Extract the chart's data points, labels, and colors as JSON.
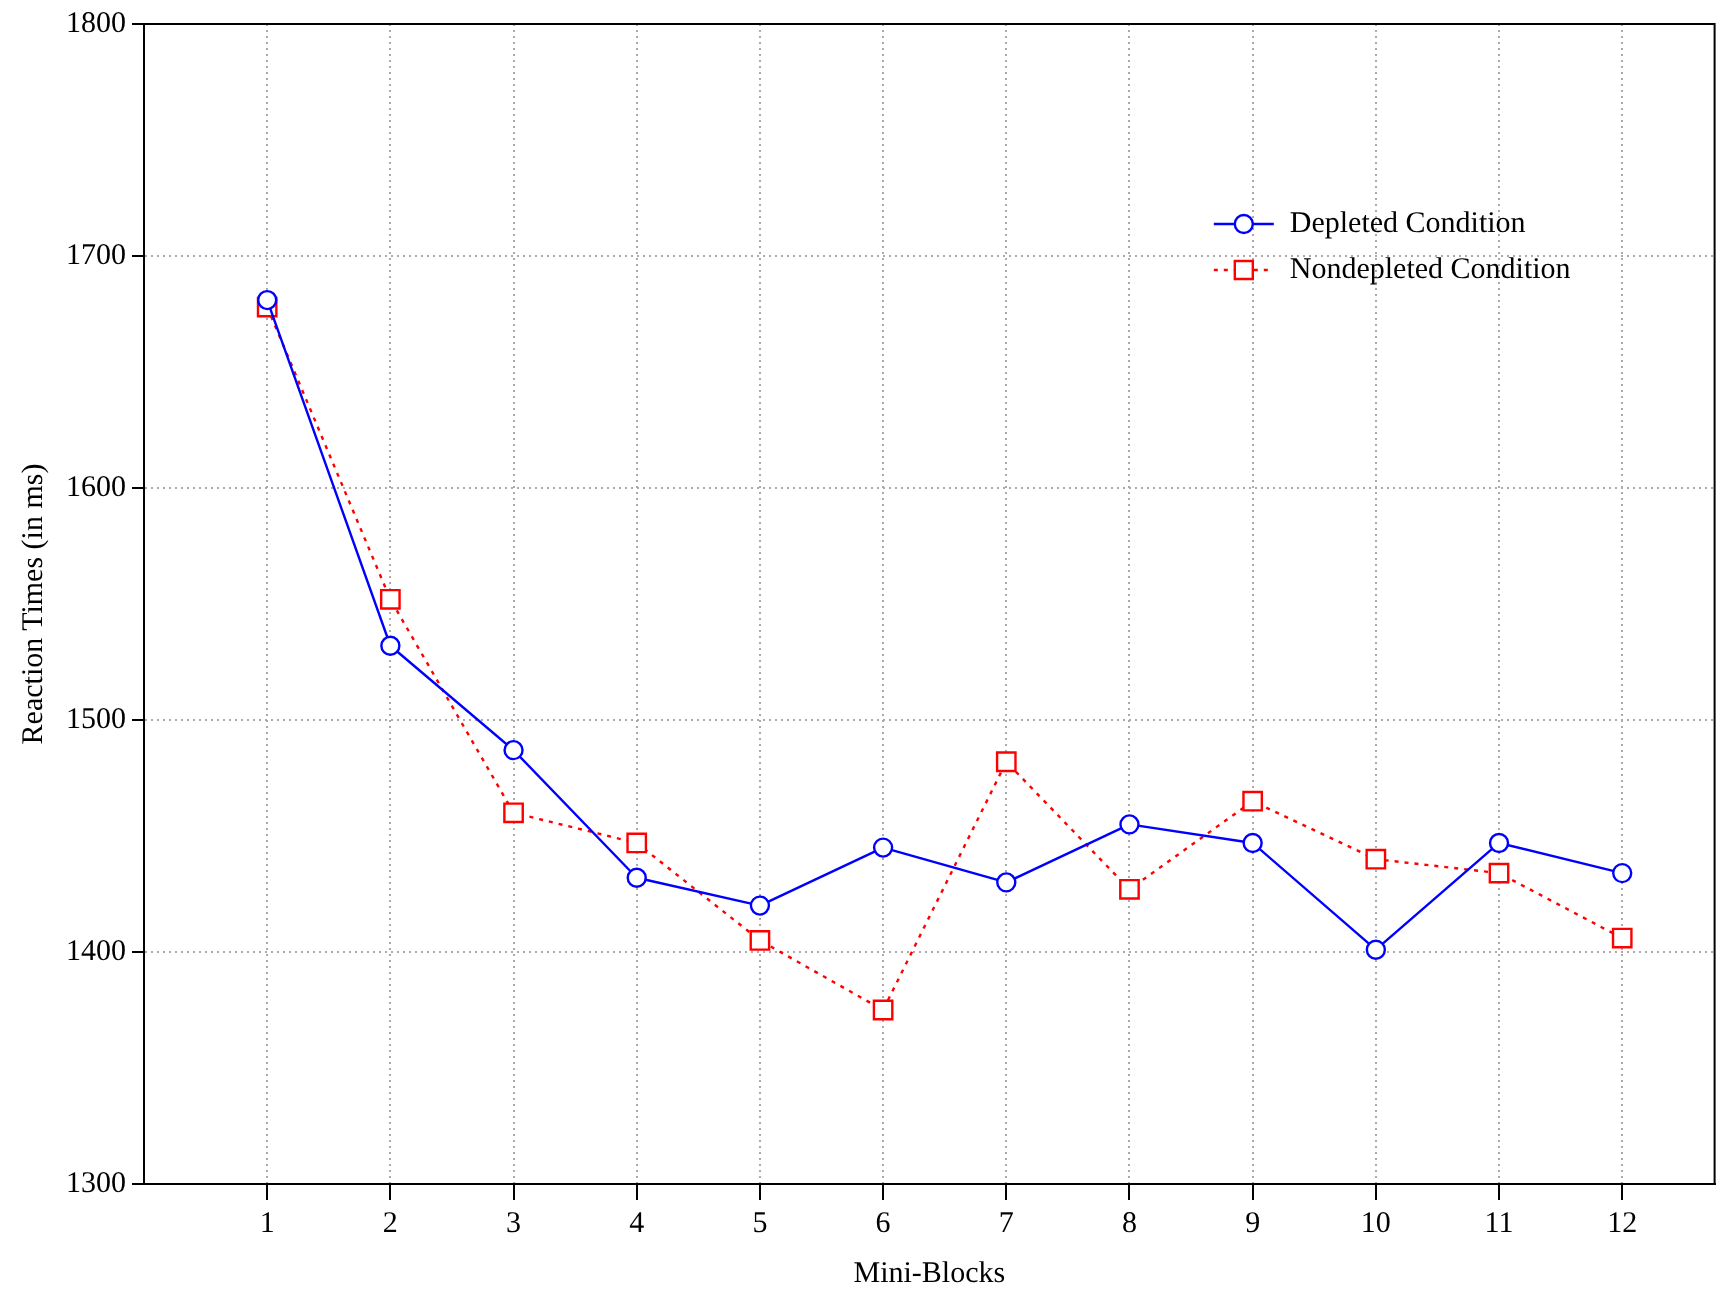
{
  "chart_data": {
    "type": "line",
    "xlabel": "Mini-Blocks",
    "ylabel": "Reaction Times (in ms)",
    "x": [
      1,
      2,
      3,
      4,
      5,
      6,
      7,
      8,
      9,
      10,
      11,
      12
    ],
    "series": [
      {
        "name": "Depleted Condition",
        "color": "#0000ff",
        "marker": "circle",
        "line_style": "solid",
        "values": [
          1681,
          1532,
          1487,
          1432,
          1420,
          1445,
          1430,
          1455,
          1447,
          1401,
          1447,
          1434
        ]
      },
      {
        "name": "Nondepleted Condition",
        "color": "#ff0000",
        "marker": "square",
        "line_style": "dotted",
        "values": [
          1678,
          1552,
          1460,
          1447,
          1405,
          1375,
          1482,
          1427,
          1465,
          1440,
          1434,
          1406
        ]
      }
    ],
    "xlim": [
      0,
      12.75
    ],
    "xticks": [
      1,
      2,
      3,
      4,
      5,
      6,
      7,
      8,
      9,
      10,
      11,
      12
    ],
    "ylim": [
      1300,
      1800
    ],
    "yticks": [
      1300,
      1400,
      1500,
      1600,
      1700,
      1800
    ],
    "grid": true,
    "legend": "top right"
  }
}
